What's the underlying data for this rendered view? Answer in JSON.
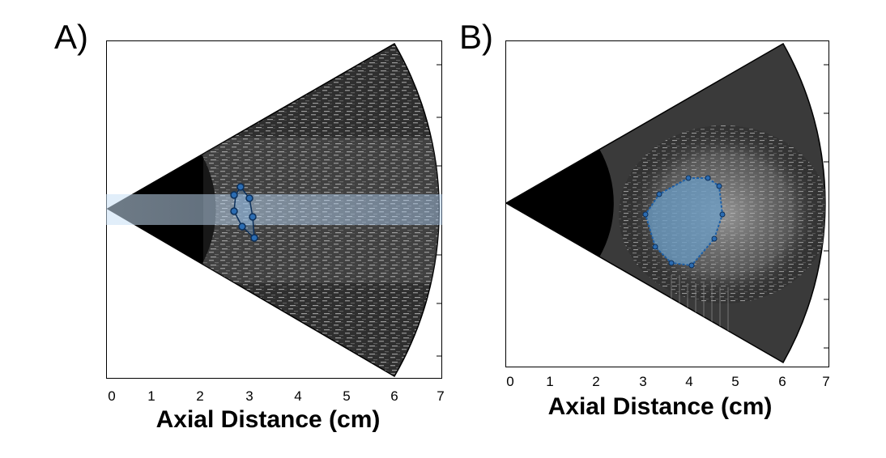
{
  "figure": {
    "panels": [
      {
        "label": "A)",
        "xlabel": "Axial Distance (cm)",
        "ticks": [
          "0",
          "1",
          "2",
          "3",
          "4",
          "5",
          "6",
          "7"
        ],
        "overlay": "horizontal blue beam band with dot outline",
        "colors": {
          "beam": "#9fc6ee",
          "outline": "#1d5fa6"
        }
      },
      {
        "label": "B)",
        "xlabel": "Axial Distance (cm)",
        "ticks": [
          "0",
          "1",
          "2",
          "3",
          "4",
          "5",
          "6",
          "7"
        ],
        "overlay": "filled blue region outline with vertices",
        "colors": {
          "fill": "#6a9cc6",
          "outline": "#1d5fa6"
        }
      }
    ],
    "icons": [
      "ultrasound-sector-image"
    ]
  }
}
